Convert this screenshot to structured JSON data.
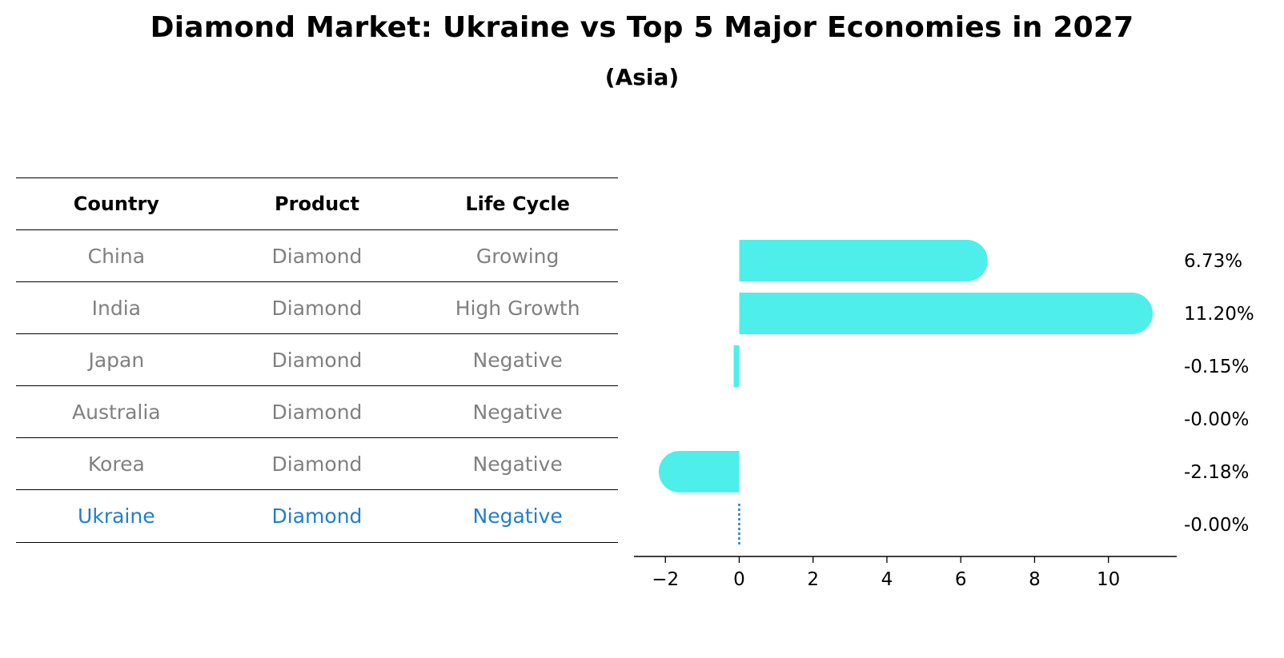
{
  "title": "Diamond Market: Ukraine vs Top 5 Major Economies in 2027",
  "subtitle": "(Asia)",
  "table": {
    "headers": [
      "Country",
      "Product",
      "Life Cycle"
    ],
    "rows": [
      {
        "country": "China",
        "product": "Diamond",
        "life_cycle": "Growing"
      },
      {
        "country": "India",
        "product": "Diamond",
        "life_cycle": "High Growth"
      },
      {
        "country": "Japan",
        "product": "Diamond",
        "life_cycle": "Negative"
      },
      {
        "country": "Australia",
        "product": "Diamond",
        "life_cycle": "Negative"
      },
      {
        "country": "Korea",
        "product": "Diamond",
        "life_cycle": "Negative"
      },
      {
        "country": "Ukraine",
        "product": "Diamond",
        "life_cycle": "Negative"
      }
    ]
  },
  "colors": {
    "bar": "#4eeeea",
    "highlight": "#1f7ed1",
    "muted": "#808080"
  },
  "chart_data": {
    "type": "bar",
    "orientation": "horizontal",
    "categories": [
      "China",
      "India",
      "Japan",
      "Australia",
      "Korea",
      "Ukraine"
    ],
    "values": [
      6.73,
      11.2,
      -0.15,
      -0.0,
      -2.18,
      -0.0
    ],
    "labels": [
      "6.73%",
      "11.20%",
      "-0.15%",
      "-0.00%",
      "-2.18%",
      "-0.00%"
    ],
    "xlim": [
      -2.85,
      11.85
    ],
    "xticks": [
      -2,
      0,
      2,
      4,
      6,
      8,
      10
    ],
    "xtick_labels": [
      "−2",
      "0",
      "2",
      "4",
      "6",
      "8",
      "10"
    ],
    "highlight_category": "Ukraine",
    "title": "Diamond Market: Ukraine vs Top 5 Major Economies in 2027",
    "xlabel": "",
    "ylabel": ""
  }
}
